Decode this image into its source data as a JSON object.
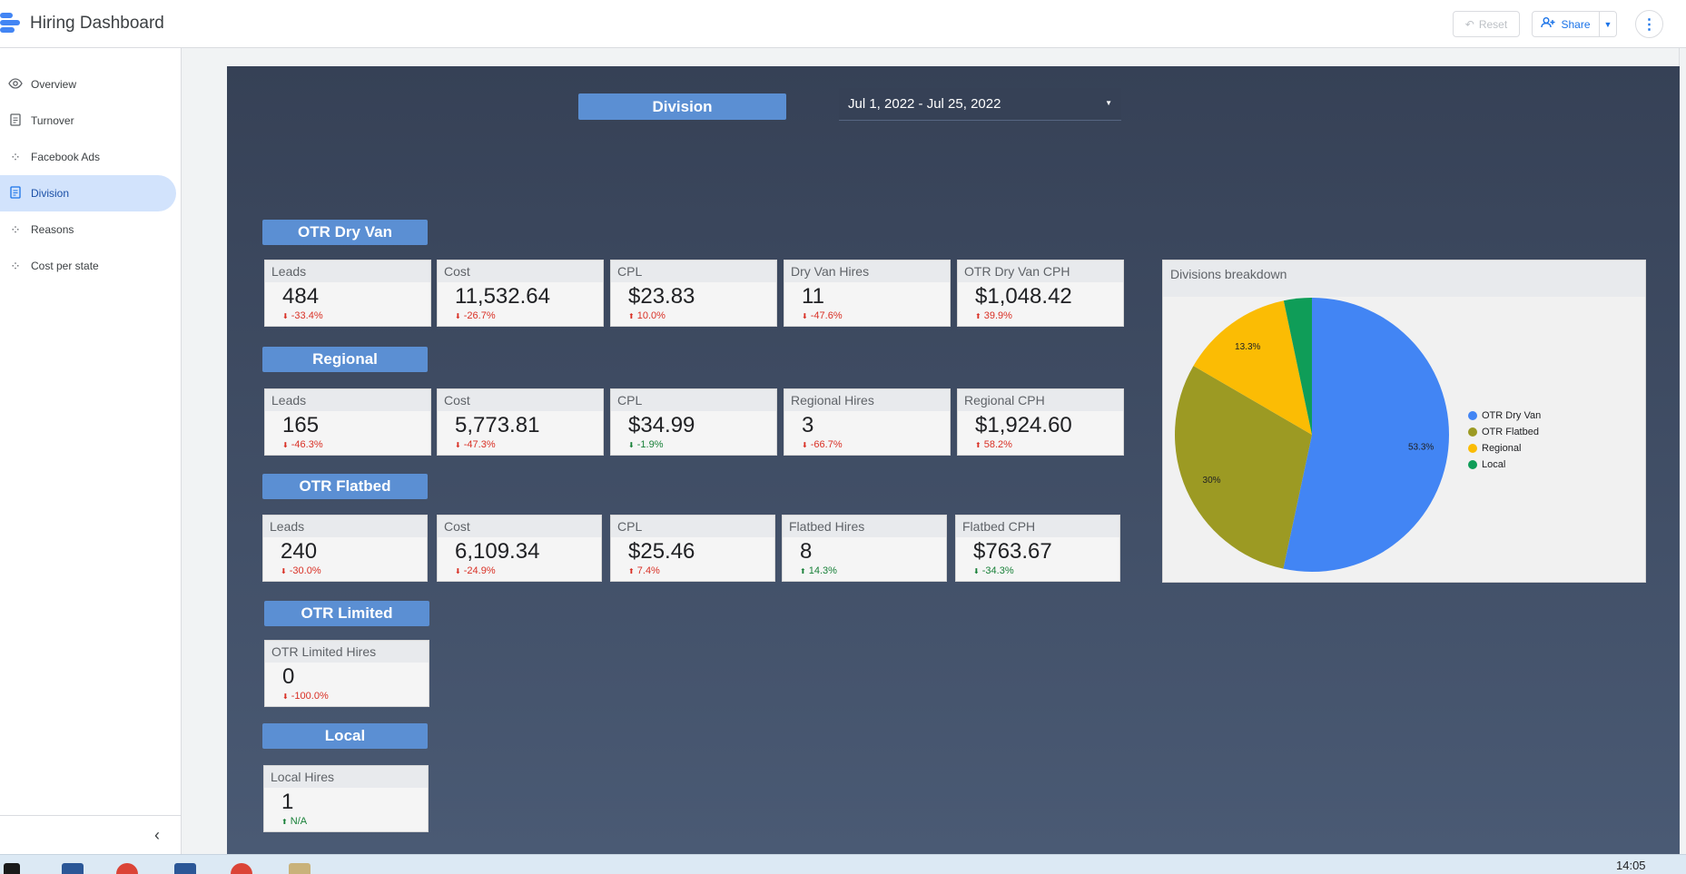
{
  "header": {
    "title": "Hiring Dashboard",
    "reset_label": "Reset",
    "share_label": "Share"
  },
  "sidebar": {
    "items": [
      {
        "label": "Overview",
        "icon": "eye-icon"
      },
      {
        "label": "Turnover",
        "icon": "page-icon"
      },
      {
        "label": "Facebook Ads",
        "icon": "scatter-icon"
      },
      {
        "label": "Division",
        "icon": "page-icon",
        "active": true
      },
      {
        "label": "Reasons",
        "icon": "scatter-icon"
      },
      {
        "label": "Cost per state",
        "icon": "scatter-icon"
      }
    ]
  },
  "report": {
    "division_filter": "Division",
    "date_range": "Jul 1, 2022 - Jul 25, 2022",
    "sections": [
      {
        "title": "OTR Dry Van",
        "cards": [
          {
            "label": "Leads",
            "value": "484",
            "delta": "-33.4%",
            "dir": "down",
            "good": false
          },
          {
            "label": "Cost",
            "value": "11,532.64",
            "delta": "-26.7%",
            "dir": "down",
            "good": false
          },
          {
            "label": "CPL",
            "value": "$23.83",
            "delta": "10.0%",
            "dir": "up",
            "good": false
          },
          {
            "label": "Dry Van Hires",
            "value": "11",
            "delta": "-47.6%",
            "dir": "down",
            "good": false
          },
          {
            "label": "OTR Dry Van CPH",
            "value": "$1,048.42",
            "delta": "39.9%",
            "dir": "up",
            "good": false
          }
        ]
      },
      {
        "title": "Regional",
        "cards": [
          {
            "label": "Leads",
            "value": "165",
            "delta": "-46.3%",
            "dir": "down",
            "good": false
          },
          {
            "label": "Cost",
            "value": "5,773.81",
            "delta": "-47.3%",
            "dir": "down",
            "good": false
          },
          {
            "label": "CPL",
            "value": "$34.99",
            "delta": "-1.9%",
            "dir": "down",
            "good": true
          },
          {
            "label": "Regional Hires",
            "value": "3",
            "delta": "-66.7%",
            "dir": "down",
            "good": false
          },
          {
            "label": "Regional CPH",
            "value": "$1,924.60",
            "delta": "58.2%",
            "dir": "up",
            "good": false
          }
        ]
      },
      {
        "title": "OTR Flatbed",
        "cards": [
          {
            "label": "Leads",
            "value": "240",
            "delta": "-30.0%",
            "dir": "down",
            "good": false
          },
          {
            "label": "Cost",
            "value": "6,109.34",
            "delta": "-24.9%",
            "dir": "down",
            "good": false
          },
          {
            "label": "CPL",
            "value": "$25.46",
            "delta": "7.4%",
            "dir": "up",
            "good": false
          },
          {
            "label": "Flatbed Hires",
            "value": "8",
            "delta": "14.3%",
            "dir": "up",
            "good": true
          },
          {
            "label": "Flatbed CPH",
            "value": "$763.67",
            "delta": "-34.3%",
            "dir": "down",
            "good": true
          }
        ]
      },
      {
        "title": "OTR Limited",
        "cards": [
          {
            "label": "OTR Limited Hires",
            "value": "0",
            "delta": "-100.0%",
            "dir": "down",
            "good": false
          }
        ]
      },
      {
        "title": "Local",
        "cards": [
          {
            "label": "Local Hires",
            "value": "1",
            "delta": "N/A",
            "dir": "up",
            "good": true
          }
        ]
      }
    ]
  },
  "chart_data": {
    "type": "pie",
    "title": "Divisions breakdown",
    "categories": [
      "OTR Dry Van",
      "OTR Flatbed",
      "Regional",
      "Local"
    ],
    "values": [
      53.3,
      30,
      13.3,
      3.3
    ],
    "labels": [
      "53.3%",
      "30%",
      "13.3%",
      ""
    ],
    "colors": [
      "#4285f4",
      "#9c9a23",
      "#fbbc04",
      "#0f9d58"
    ],
    "legend": "right"
  },
  "taskbar": {
    "time": "14:05"
  }
}
